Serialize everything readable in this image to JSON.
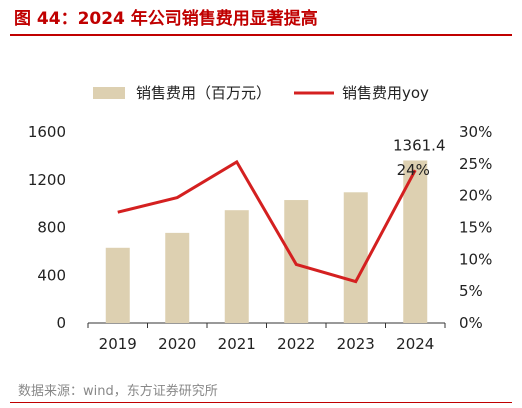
{
  "figure": {
    "title": "图 44：2024 年公司销售费用显著提高",
    "source": "数据来源：wind，东方证券研究所"
  },
  "colors": {
    "bar": "#ddd0b1",
    "line": "#d42020",
    "title": "#c00000"
  },
  "chart_data": {
    "type": "bar",
    "categories": [
      "2019",
      "2020",
      "2021",
      "2022",
      "2023",
      "2024"
    ],
    "series": [
      {
        "name": "销售费用（百万元）",
        "type": "bar",
        "axis": "left",
        "values": [
          630,
          755,
          945,
          1030,
          1095,
          1361.4
        ]
      },
      {
        "name": "销售费用yoy",
        "type": "line",
        "axis": "right",
        "values": [
          0.174,
          0.197,
          0.253,
          0.092,
          0.065,
          0.24
        ]
      }
    ],
    "y_left": {
      "ylim": [
        0,
        1600
      ],
      "ticks": [
        "0",
        "400",
        "800",
        "1200",
        "1600"
      ]
    },
    "y_right": {
      "ylim": [
        0,
        0.3
      ],
      "ticks": [
        "0%",
        "5%",
        "10%",
        "15%",
        "20%",
        "25%",
        "30%"
      ]
    },
    "annotations": [
      {
        "text": "1361.4",
        "category": "2024",
        "series": "bar"
      },
      {
        "text": "24%",
        "category": "2024",
        "series": "line"
      }
    ],
    "legend": {
      "placement": "top-center"
    },
    "grid": false
  }
}
